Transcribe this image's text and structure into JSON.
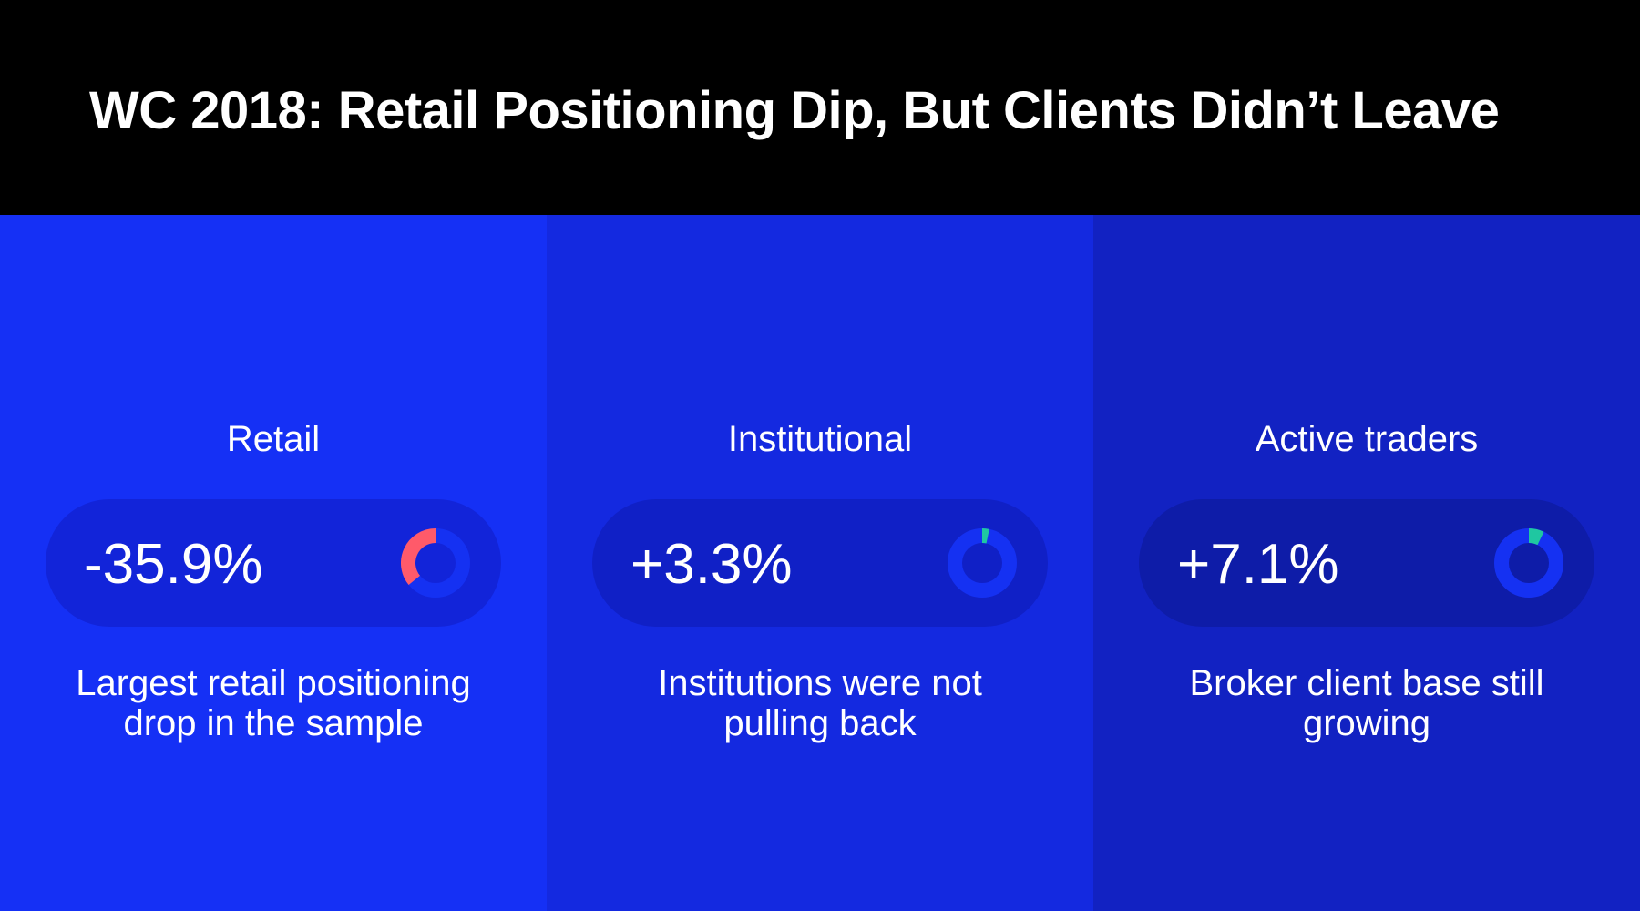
{
  "title": "WC 2018: Retail Positioning Dip, But Clients Didn’t Leave",
  "colors": {
    "header_bg": "#000000",
    "panel_bgs": [
      "#1530f5",
      "#1429e0",
      "#1222c2"
    ],
    "pill_bgs": [
      "#1224d9",
      "#1020c6",
      "#0e1ca8"
    ],
    "track": "#1531f2",
    "negative": "#ff5a6a",
    "positive": "#1fc7a1"
  },
  "chart_data": {
    "type": "donut-cards",
    "panels": [
      {
        "label": "Retail",
        "value_text": "-35.9%",
        "value": -35.9,
        "caption": "Largest retail positioning drop in the sample",
        "direction": "negative"
      },
      {
        "label": "Institutional",
        "value_text": "+3.3%",
        "value": 3.3,
        "caption": "Institutions were not pulling back",
        "direction": "positive"
      },
      {
        "label": "Active traders",
        "value_text": "+7.1%",
        "value": 7.1,
        "caption": "Broker client base still growing",
        "direction": "positive"
      }
    ]
  }
}
